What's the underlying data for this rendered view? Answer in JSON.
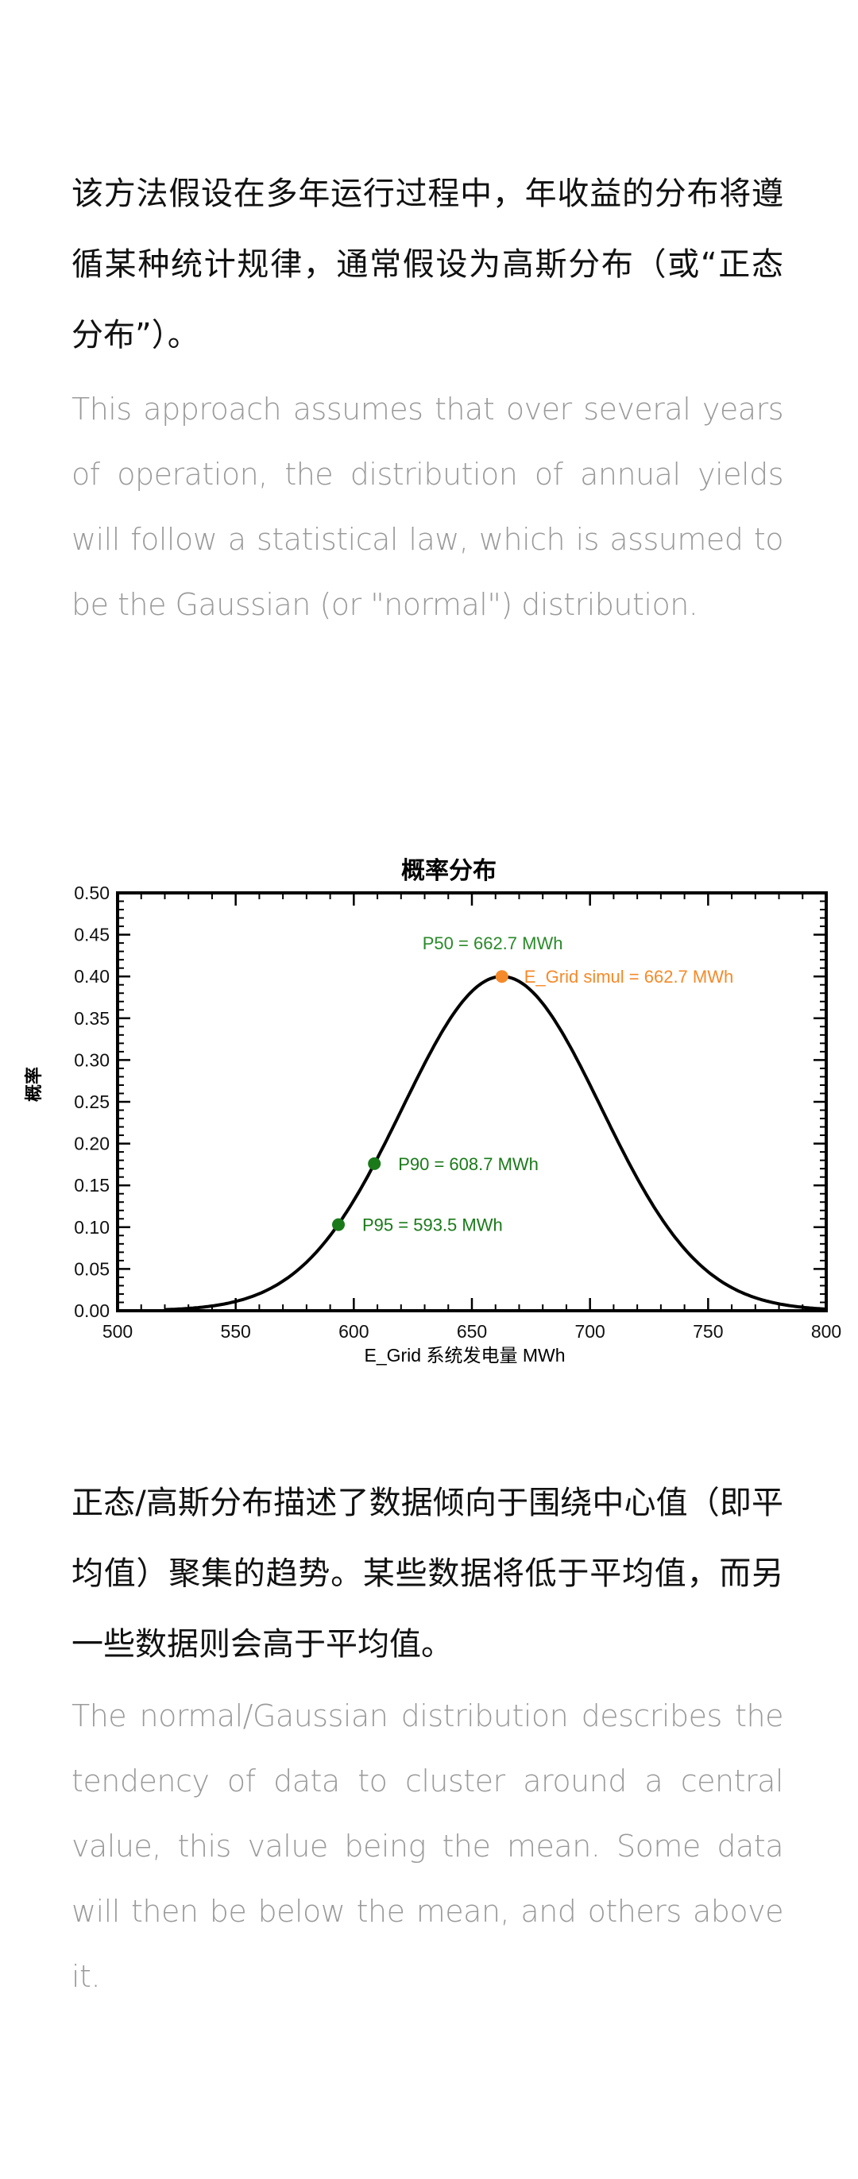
{
  "section1": {
    "zh": "该方法假设在多年运行过程中，年收益的分布将遵循某种统计规律，通常假设为高斯分布（或“正态分布”）。",
    "en": "This approach assumes that over several years of operation, the distribution of annual yields will follow a statistical law, which is assumed to be the Gaussian (or \"normal\") distribution."
  },
  "section2": {
    "zh": "正态/高斯分布描述了数据倾向于围绕中心值（即平均值）聚集的趋势。某些数据将低于平均值，而另一些数据则会高于平均值。",
    "en": "The normal/Gaussian distribution describes the tendency of data to cluster around a central value, this value being the mean. Some data will then be below the mean, and others above it."
  },
  "chart_data": {
    "type": "line",
    "title": "概率分布",
    "xlabel": "E_Grid 系统发电量 MWh",
    "ylabel": "概率",
    "xlim": [
      500,
      800
    ],
    "ylim": [
      0,
      0.5
    ],
    "xticks": [
      "500",
      "550",
      "600",
      "650",
      "700",
      "750",
      "800"
    ],
    "yticks": [
      "0.00",
      "0.05",
      "0.10",
      "0.15",
      "0.20",
      "0.25",
      "0.30",
      "0.35",
      "0.40",
      "0.45",
      "0.50"
    ],
    "grid": false,
    "series": [
      {
        "distribution": "gaussian",
        "mean": 662.7,
        "sigma": 42.1,
        "peak": 0.4,
        "color": "#000000"
      }
    ],
    "points": [
      {
        "label": "P50 = 662.7 MWh",
        "x": 662.7,
        "y": 0.4,
        "color": "#2a8a2a"
      },
      {
        "label": "E_Grid simul = 662.7 MWh",
        "x": 662.7,
        "y": 0.4,
        "color": "#f58a2a"
      },
      {
        "label": "P90 = 608.7 MWh",
        "x": 608.7,
        "y": 0.176,
        "color": "#1a7a1a"
      },
      {
        "label": "P95 = 593.5 MWh",
        "x": 593.5,
        "y": 0.103,
        "color": "#1a7a1a"
      }
    ]
  }
}
